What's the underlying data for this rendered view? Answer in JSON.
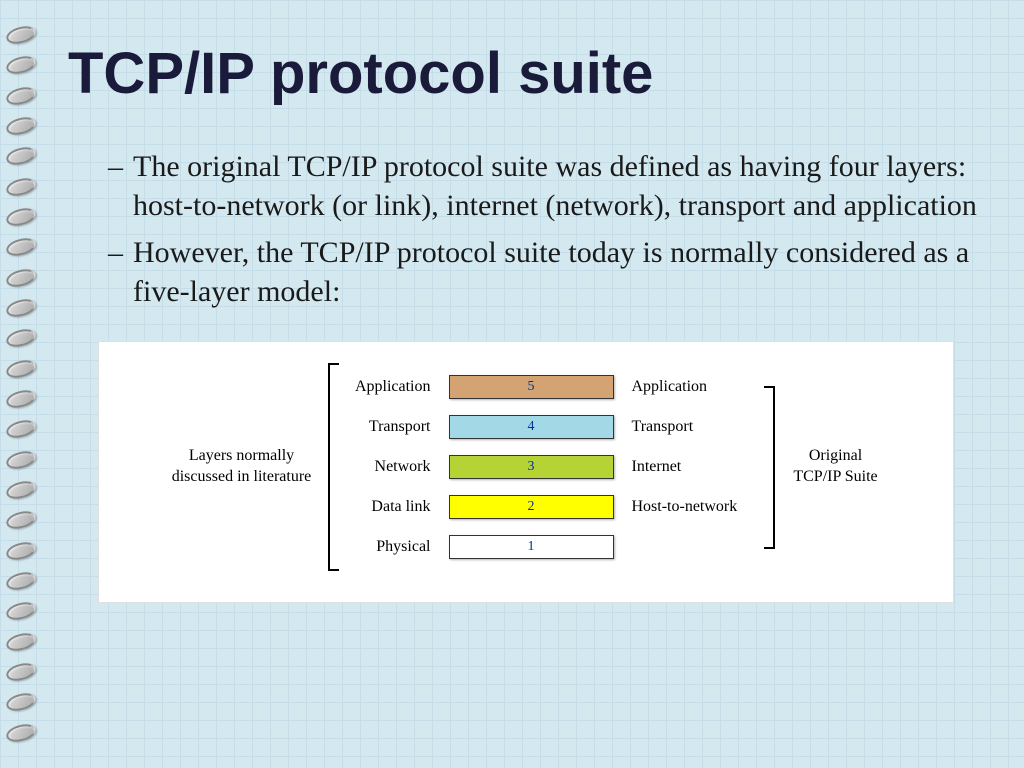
{
  "title": "TCP/IP protocol suite",
  "bullets": [
    "The original TCP/IP protocol suite was defined as having four layers: host-to-network (or link), internet (network), transport and application",
    "However, the TCP/IP protocol suite today is normally considered as a five-layer model:"
  ],
  "diagram": {
    "left_caption_line1": "Layers normally",
    "left_caption_line2": "discussed in literature",
    "right_caption_line1": "Original",
    "right_caption_line2": "TCP/IP Suite",
    "layers": [
      {
        "left": "Application",
        "num": "5",
        "right": "Application",
        "color": "#d4a373"
      },
      {
        "left": "Transport",
        "num": "4",
        "right": "Transport",
        "color": "#a3d9e6"
      },
      {
        "left": "Network",
        "num": "3",
        "right": "Internet",
        "color": "#b5d334"
      },
      {
        "left": "Data link",
        "num": "2",
        "right": "Host-to-network",
        "color": "#ffff00"
      },
      {
        "left": "Physical",
        "num": "1",
        "right": "",
        "color": "#ffffff"
      }
    ],
    "bracket_color": "#000000",
    "bracket_stroke": 2,
    "left_bracket_height": 210,
    "right_bracket_height": 165
  }
}
